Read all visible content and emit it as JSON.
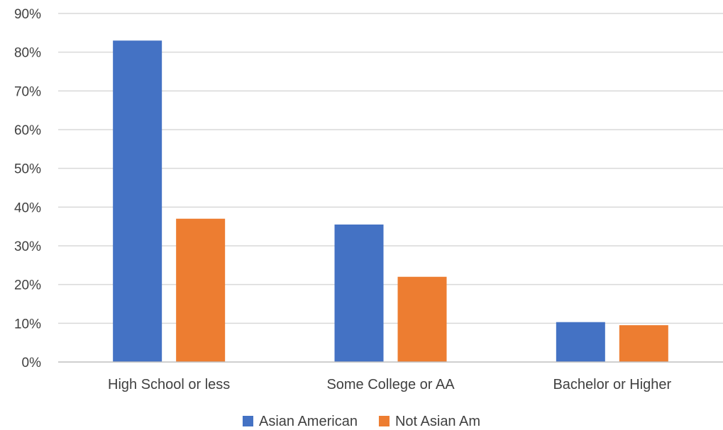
{
  "chart_data": {
    "type": "bar",
    "categories": [
      "High School or less",
      "Some College or AA",
      "Bachelor or Higher"
    ],
    "series": [
      {
        "name": "Asian American",
        "values": [
          83,
          35.5,
          10.3
        ],
        "color": "#4472c4"
      },
      {
        "name": "Not Asian Am",
        "values": [
          37,
          22,
          9.5
        ],
        "color": "#ed7d31"
      }
    ],
    "ylim": [
      0,
      90
    ],
    "y_ticks": [
      0,
      10,
      20,
      30,
      40,
      50,
      60,
      70,
      80,
      90
    ],
    "y_tick_format": "percent",
    "grid": true,
    "legend": "bottom-center",
    "title": "",
    "xlabel": "",
    "ylabel": ""
  }
}
